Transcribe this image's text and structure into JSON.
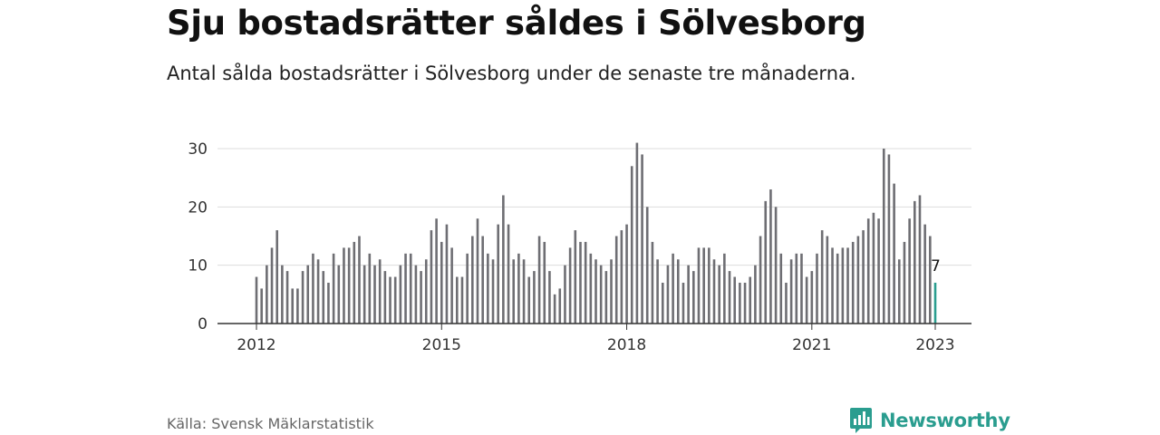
{
  "title": "Sju bostadsrätter såldes i Sölvesborg",
  "subtitle": "Antal sålda bostadsrätter i Sölvesborg under de senaste tre månaderna.",
  "source": "Källa: Svensk Mäklarstatistik",
  "brand": "Newsworthy",
  "colors": {
    "bar": "#6e6e73",
    "highlight": "#2a9d8f",
    "grid": "#dddddd",
    "axis": "#333333",
    "brand": "#2a9d8f"
  },
  "chart_data": {
    "type": "bar",
    "title": "Sju bostadsrätter såldes i Sölvesborg",
    "subtitle": "Antal sålda bostadsrätter i Sölvesborg under de senaste tre månaderna.",
    "xlabel": "",
    "ylabel": "",
    "ylim": [
      0,
      30
    ],
    "yticks": [
      0,
      10,
      20,
      30
    ],
    "xtick_labels": [
      "2012",
      "2015",
      "2018",
      "2021",
      "2023"
    ],
    "grid": true,
    "start": "2012-01",
    "end": "2023-01",
    "highlight": {
      "period": "2023-01",
      "value": 7,
      "label": "7"
    },
    "values": [
      8,
      6,
      10,
      13,
      16,
      10,
      9,
      6,
      6,
      9,
      10,
      12,
      11,
      9,
      7,
      12,
      10,
      13,
      13,
      14,
      15,
      10,
      12,
      10,
      11,
      9,
      8,
      8,
      10,
      12,
      12,
      10,
      9,
      11,
      16,
      18,
      14,
      17,
      13,
      8,
      8,
      12,
      15,
      18,
      15,
      12,
      11,
      17,
      22,
      17,
      11,
      12,
      11,
      8,
      9,
      15,
      14,
      9,
      5,
      6,
      10,
      13,
      16,
      14,
      14,
      12,
      11,
      10,
      9,
      11,
      15,
      16,
      17,
      27,
      31,
      29,
      20,
      14,
      11,
      7,
      10,
      12,
      11,
      7,
      10,
      9,
      13,
      13,
      13,
      11,
      10,
      12,
      9,
      8,
      7,
      7,
      8,
      10,
      15,
      21,
      23,
      20,
      12,
      7,
      11,
      12,
      12,
      8,
      9,
      12,
      16,
      15,
      13,
      12,
      13,
      13,
      14,
      15,
      16,
      18,
      19,
      18,
      30,
      29,
      24,
      11,
      14,
      18,
      21,
      22,
      17,
      15,
      7
    ]
  }
}
